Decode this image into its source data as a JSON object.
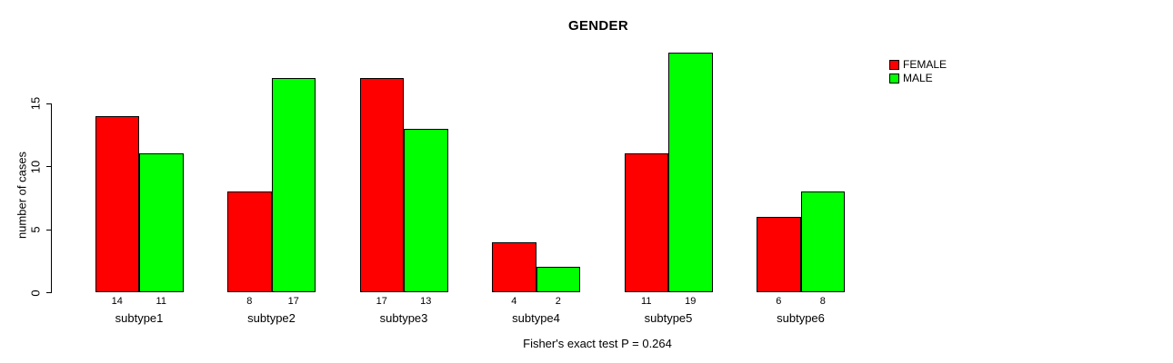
{
  "chart_data": {
    "type": "bar",
    "title": "GENDER",
    "ylabel": "number of cases",
    "xlabel": "",
    "caption": "Fisher's exact test P = 0.264",
    "categories": [
      "subtype1",
      "subtype2",
      "subtype3",
      "subtype4",
      "subtype5",
      "subtype6"
    ],
    "series": [
      {
        "name": "FEMALE",
        "color": "#FF0000",
        "values": [
          14,
          8,
          17,
          4,
          11,
          6
        ]
      },
      {
        "name": "MALE",
        "color": "#00FF00",
        "values": [
          11,
          17,
          13,
          2,
          19,
          8
        ]
      }
    ],
    "bar_value_labels": [
      [
        "14",
        "11"
      ],
      [
        "8",
        "17"
      ],
      [
        "17",
        "13"
      ],
      [
        "4",
        "2"
      ],
      [
        "11",
        "19"
      ],
      [
        "6",
        "8"
      ]
    ],
    "yticks": [
      0,
      5,
      10,
      15
    ],
    "ylim": [
      0,
      19
    ],
    "grid": false,
    "legend_position": "top-right",
    "bar_border_color": "#000000",
    "background_color": "#FFFFFF"
  }
}
